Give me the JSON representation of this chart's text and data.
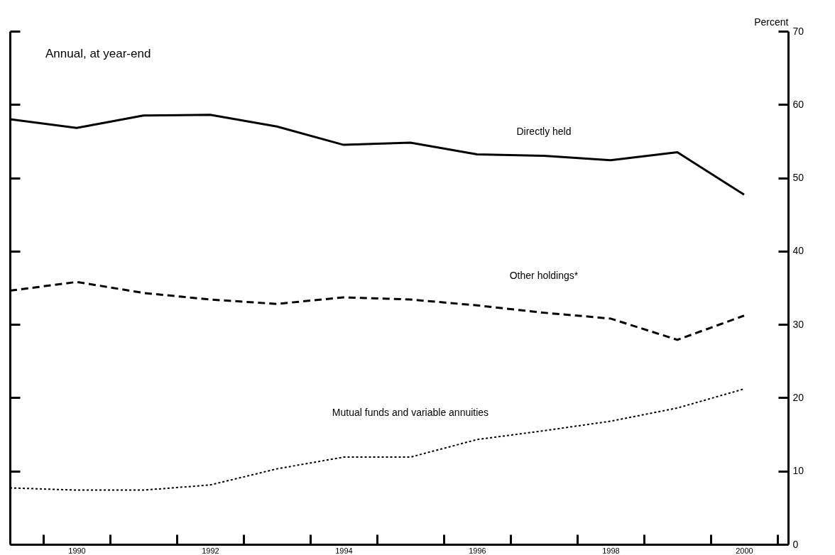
{
  "chart_data": {
    "type": "line",
    "ylabel": "Percent",
    "xlim": [
      1989,
      2000.66
    ],
    "ylim": [
      0,
      70
    ],
    "xticks": [
      {
        "value": 1989.5,
        "label": null
      },
      1990,
      {
        "value": 1990.5,
        "label": null
      },
      {
        "value": 1991.5,
        "label": null
      },
      1992,
      {
        "value": 1992.5,
        "label": null
      },
      {
        "value": 1993.5,
        "label": null
      },
      1994,
      {
        "value": 1994.5,
        "label": null
      },
      {
        "value": 1995.5,
        "label": null
      },
      1996,
      {
        "value": 1996.5,
        "label": null
      },
      {
        "value": 1997.5,
        "label": null
      },
      1998,
      {
        "value": 1998.5,
        "label": null
      },
      {
        "value": 1999.5,
        "label": null
      },
      2000,
      {
        "value": 2000.5,
        "label": null
      }
    ],
    "yticks": [
      0,
      10,
      20,
      30,
      40,
      50,
      60,
      70
    ],
    "x": [
      1989,
      1990,
      1991,
      1992,
      1993,
      1994,
      1995,
      1996,
      1997,
      1998,
      1999,
      2000
    ],
    "grid": false,
    "series": [
      {
        "name": "Directly held",
        "color": "#000000",
        "line_style": "solid",
        "values": [
          58.0,
          56.8,
          58.5,
          58.6,
          57.0,
          54.5,
          54.8,
          53.2,
          53.0,
          52.4,
          53.5,
          47.7
        ]
      },
      {
        "name": "Other holdings*",
        "color": "#000000",
        "line_style": "dashed",
        "values": [
          34.6,
          35.8,
          34.3,
          33.4,
          32.8,
          33.7,
          33.4,
          32.6,
          31.6,
          30.8,
          27.9,
          31.2
        ]
      },
      {
        "name": "Mutual funds and variable annuities",
        "color": "#000000",
        "line_style": "dotted",
        "values": [
          7.7,
          7.4,
          7.4,
          8.1,
          10.3,
          11.9,
          11.9,
          14.3,
          15.5,
          16.8,
          18.6,
          21.2
        ]
      }
    ],
    "annotations": [
      "Annual, at year-end"
    ]
  }
}
